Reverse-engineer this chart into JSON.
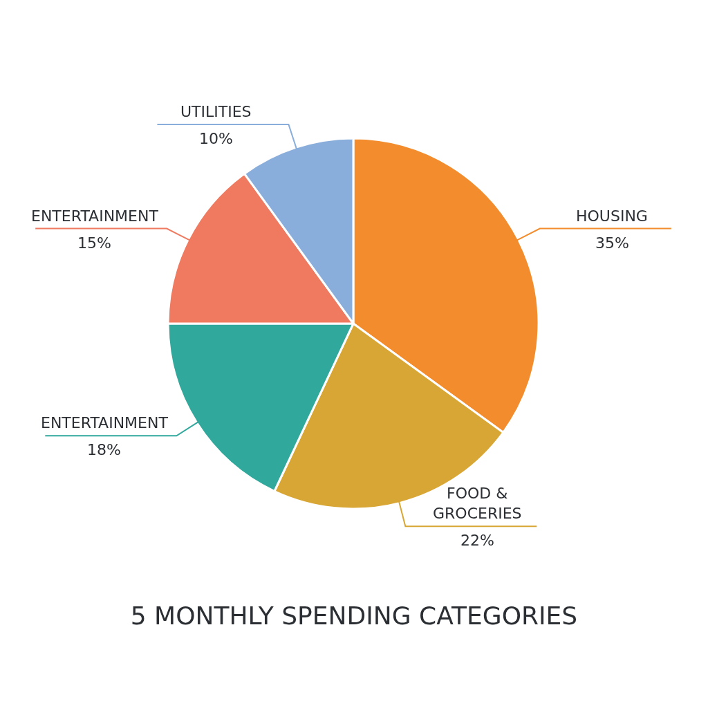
{
  "chart_data": {
    "type": "pie",
    "title": "5 MONTHLY SPENDING CATEGORIES",
    "categories": [
      "HOUSING",
      "FOOD & GROCERIES",
      "ENTERTAINMENT",
      "ENTERTAINMENT",
      "UTILITIES"
    ],
    "values": [
      35,
      22,
      18,
      15,
      10
    ],
    "colors": [
      "#f28c2c",
      "#d8a634",
      "#31a89c",
      "#f07a5f",
      "#8aaedb"
    ],
    "value_labels": [
      "35%",
      "22%",
      "18%",
      "15%",
      "10%"
    ],
    "legend": false
  }
}
